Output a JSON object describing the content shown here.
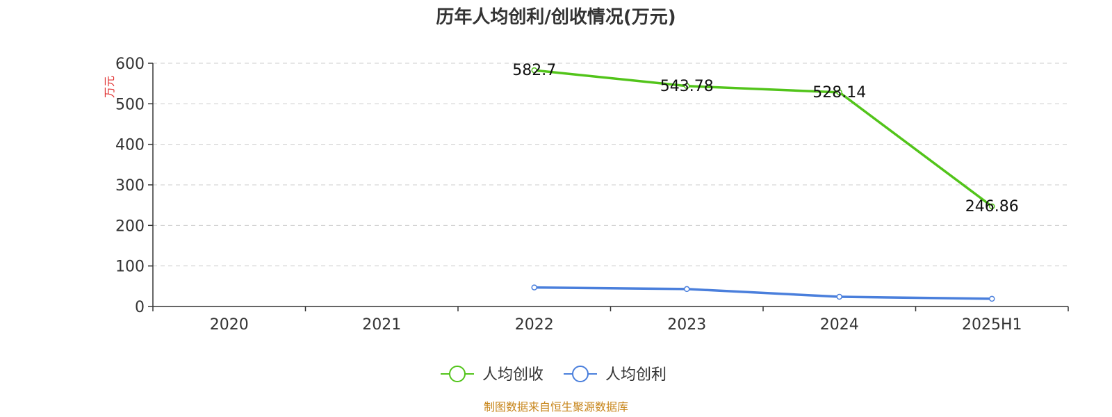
{
  "chart_data": {
    "type": "line",
    "title": "历年人均创利/创收情况(万元)",
    "ylabel": "万元",
    "xlabel": "",
    "categories": [
      "2020",
      "2021",
      "2022",
      "2023",
      "2024",
      "2025H1"
    ],
    "ylim": [
      0,
      600
    ],
    "yticks": [
      0,
      100,
      200,
      300,
      400,
      500,
      600
    ],
    "grid": true,
    "legend_position": "bottom-center",
    "series": [
      {
        "name": "人均创收",
        "color": "#52c41a",
        "values": [
          null,
          null,
          582.7,
          543.78,
          528.14,
          246.86
        ],
        "labels": [
          "",
          "",
          "582.7",
          "543.78",
          "528.14",
          "246.86"
        ]
      },
      {
        "name": "人均创利",
        "color": "#4a7fdc",
        "values": [
          null,
          null,
          47,
          43,
          24,
          19
        ],
        "labels": [
          "",
          "",
          "",
          "",
          "",
          ""
        ]
      }
    ]
  },
  "source": "制图数据来自恒生聚源数据库"
}
